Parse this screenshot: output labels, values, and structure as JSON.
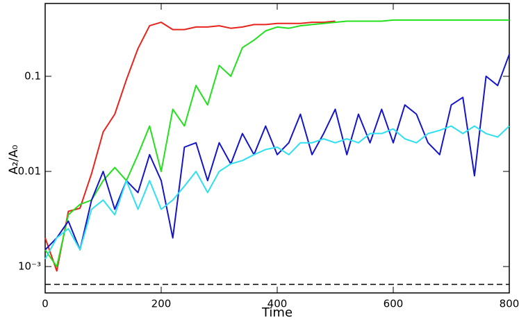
{
  "chart_data": {
    "type": "line",
    "xlabel": "Time",
    "ylabel": "A₂/A₀",
    "xlim": [
      0,
      800
    ],
    "xticks": [
      0,
      200,
      400,
      600,
      800
    ],
    "ylim": [
      0.000528,
      0.583
    ],
    "yticks": [
      {
        "value": 0.001,
        "label": "10⁻³"
      },
      0.01,
      0.1
    ],
    "log_y": true,
    "grid": false,
    "hline": {
      "value": 0.00065,
      "color": "#000000",
      "dashed": true
    },
    "x": [
      0,
      20,
      40,
      60,
      80,
      100,
      120,
      140,
      160,
      180,
      200,
      220,
      240,
      260,
      280,
      300,
      320,
      340,
      360,
      380,
      400,
      420,
      440,
      460,
      480,
      500,
      520,
      540,
      560,
      580,
      600,
      620,
      640,
      660,
      680,
      700,
      720,
      740,
      760,
      780,
      800
    ],
    "series": [
      {
        "color": "#e8231c",
        "values": [
          0.002,
          0.0009,
          0.0038,
          0.0041,
          0.0095,
          0.026,
          0.04,
          0.092,
          0.196,
          0.34,
          0.37,
          0.31,
          0.31,
          0.33,
          0.33,
          0.34,
          0.32,
          0.33,
          0.35,
          0.35,
          0.36,
          0.36,
          0.36,
          0.37,
          0.37,
          0.38,
          null,
          null,
          null,
          null,
          null,
          null,
          null,
          null,
          null,
          null,
          null,
          null,
          null,
          null,
          null
        ]
      },
      {
        "color": "#22e01c",
        "values": [
          0.0015,
          0.001,
          0.0035,
          0.0045,
          0.005,
          0.008,
          0.011,
          0.008,
          0.015,
          0.03,
          0.01,
          0.045,
          0.03,
          0.08,
          0.05,
          0.13,
          0.1,
          0.2,
          0.24,
          0.3,
          0.33,
          0.32,
          0.34,
          0.35,
          0.36,
          0.37,
          0.38,
          0.38,
          0.38,
          0.38,
          0.39,
          0.39,
          0.39,
          0.39,
          0.39,
          0.39,
          0.39,
          0.39,
          0.39,
          0.39,
          0.39
        ]
      },
      {
        "color": "#1414c8",
        "values": [
          0.0015,
          0.002,
          0.003,
          0.0015,
          0.005,
          0.01,
          0.004,
          0.008,
          0.006,
          0.015,
          0.008,
          0.002,
          0.018,
          0.02,
          0.008,
          0.02,
          0.012,
          0.025,
          0.015,
          0.03,
          0.015,
          0.02,
          0.04,
          0.015,
          0.025,
          0.045,
          0.015,
          0.04,
          0.02,
          0.045,
          0.02,
          0.05,
          0.04,
          0.02,
          0.015,
          0.05,
          0.06,
          0.009,
          0.1,
          0.08,
          0.17
        ]
      },
      {
        "color": "#2ee0f0",
        "values": [
          0.0012,
          0.002,
          0.0025,
          0.0015,
          0.004,
          0.005,
          0.0035,
          0.008,
          0.004,
          0.008,
          0.004,
          0.005,
          0.007,
          0.01,
          0.006,
          0.01,
          0.012,
          0.013,
          0.015,
          0.017,
          0.018,
          0.015,
          0.02,
          0.02,
          0.022,
          0.02,
          0.022,
          0.02,
          0.025,
          0.025,
          0.028,
          0.022,
          0.02,
          0.025,
          0.027,
          0.03,
          0.025,
          0.03,
          0.025,
          0.023,
          0.03
        ]
      }
    ]
  }
}
